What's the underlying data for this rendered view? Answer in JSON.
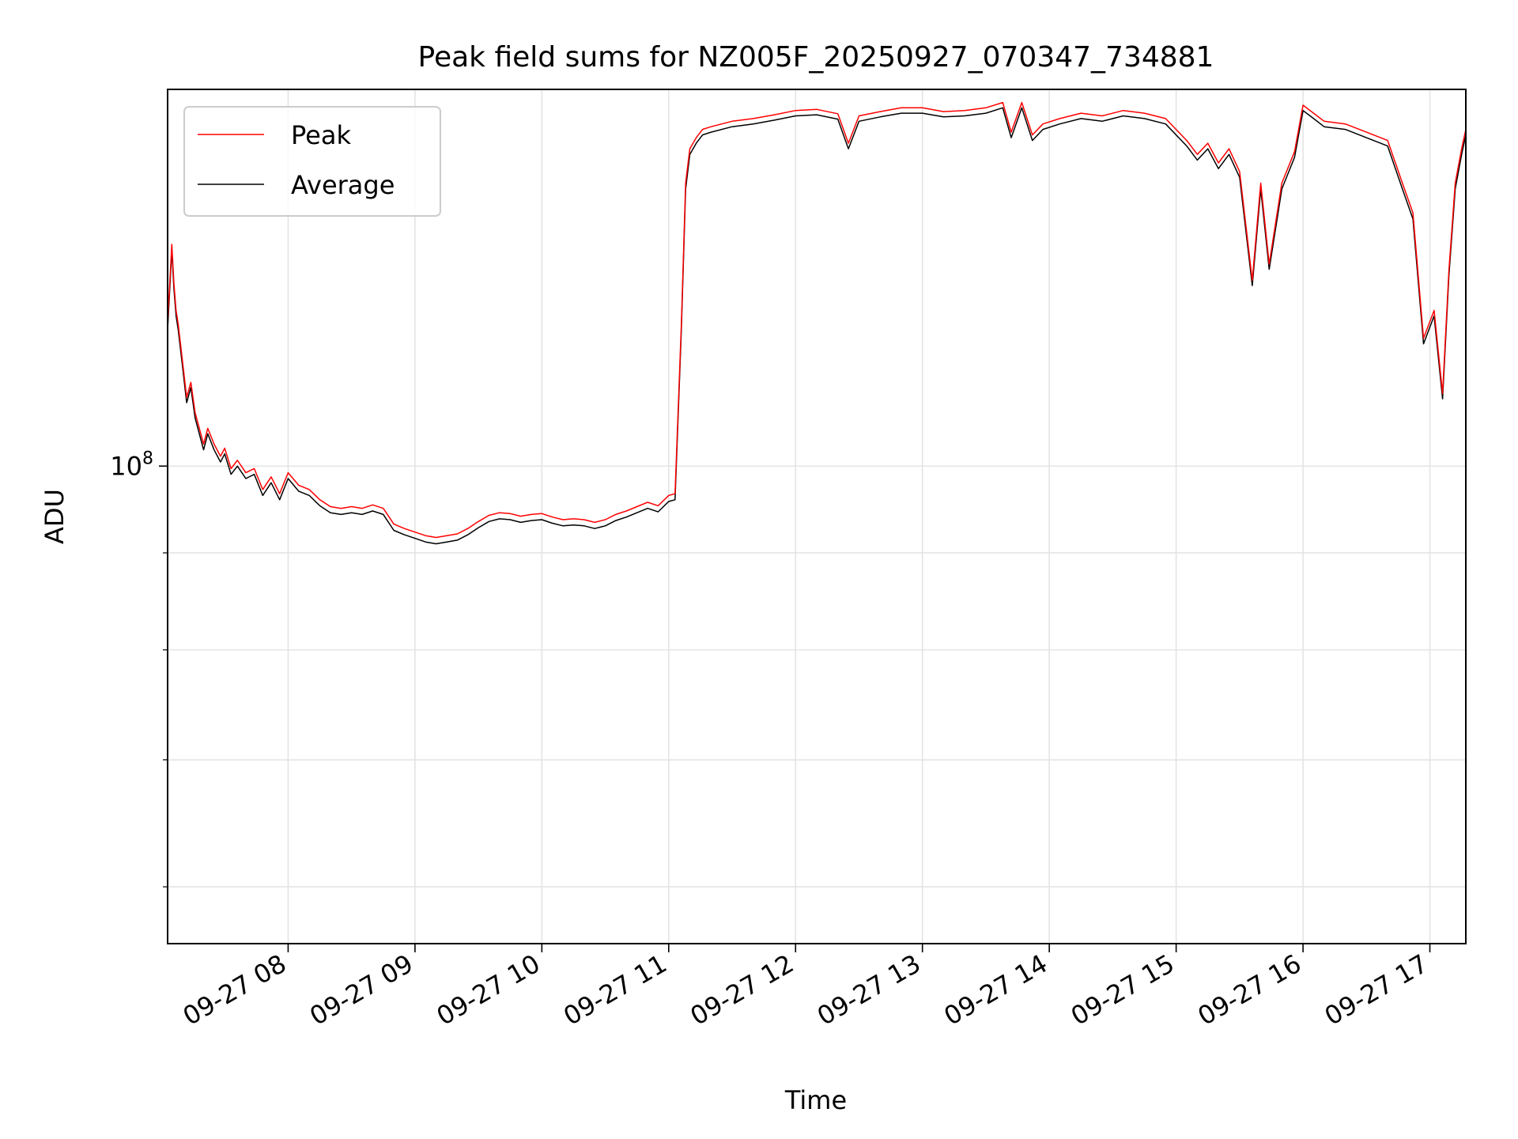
{
  "chart_data": {
    "type": "line",
    "title": "Peak field sums for NZ005F_20250927_070347_734881",
    "xlabel": "Time",
    "ylabel": "ADU",
    "y_scale": "log",
    "y_tick_label": {
      "base": "10",
      "exponent": "8",
      "value": 100000000
    },
    "y_minor_ticks": [
      60000000,
      70000000,
      80000000,
      90000000
    ],
    "ylim": [
      56000000,
      158000000
    ],
    "xlim": [
      "2025-09-27 07:03",
      "2025-09-27 17:17"
    ],
    "x_ticks": [
      {
        "label": "09-27 08",
        "time": "2025-09-27 08:00"
      },
      {
        "label": "09-27 09",
        "time": "2025-09-27 09:00"
      },
      {
        "label": "09-27 10",
        "time": "2025-09-27 10:00"
      },
      {
        "label": "09-27 11",
        "time": "2025-09-27 11:00"
      },
      {
        "label": "09-27 12",
        "time": "2025-09-27 12:00"
      },
      {
        "label": "09-27 13",
        "time": "2025-09-27 13:00"
      },
      {
        "label": "09-27 14",
        "time": "2025-09-27 14:00"
      },
      {
        "label": "09-27 15",
        "time": "2025-09-27 15:00"
      },
      {
        "label": "09-27 16",
        "time": "2025-09-27 16:00"
      },
      {
        "label": "09-27 17",
        "time": "2025-09-27 17:00"
      }
    ],
    "grid": true,
    "legend_position": "top-left",
    "series": [
      {
        "name": "Average",
        "color": "#000000",
        "points": [
          [
            "2025-09-27 07:03",
            118000000
          ],
          [
            "2025-09-27 07:05",
            130000000
          ],
          [
            "2025-09-27 07:06",
            124000000
          ],
          [
            "2025-09-27 07:07",
            120000000
          ],
          [
            "2025-09-27 07:08",
            118000000
          ],
          [
            "2025-09-27 07:10",
            113000000
          ],
          [
            "2025-09-27 07:12",
            108000000
          ],
          [
            "2025-09-27 07:14",
            110000000
          ],
          [
            "2025-09-27 07:16",
            106000000
          ],
          [
            "2025-09-27 07:18",
            104000000
          ],
          [
            "2025-09-27 07:20",
            102000000
          ],
          [
            "2025-09-27 07:22",
            104000000
          ],
          [
            "2025-09-27 07:25",
            102000000
          ],
          [
            "2025-09-27 07:28",
            100500000
          ],
          [
            "2025-09-27 07:30",
            101500000
          ],
          [
            "2025-09-27 07:33",
            99000000
          ],
          [
            "2025-09-27 07:36",
            100000000
          ],
          [
            "2025-09-27 07:40",
            98500000
          ],
          [
            "2025-09-27 07:44",
            99000000
          ],
          [
            "2025-09-27 07:48",
            96500000
          ],
          [
            "2025-09-27 07:52",
            98000000
          ],
          [
            "2025-09-27 07:56",
            96000000
          ],
          [
            "2025-09-27 08:00",
            98500000
          ],
          [
            "2025-09-27 08:05",
            97000000
          ],
          [
            "2025-09-27 08:10",
            96500000
          ],
          [
            "2025-09-27 08:15",
            95300000
          ],
          [
            "2025-09-27 08:20",
            94500000
          ],
          [
            "2025-09-27 08:25",
            94300000
          ],
          [
            "2025-09-27 08:30",
            94500000
          ],
          [
            "2025-09-27 08:35",
            94300000
          ],
          [
            "2025-09-27 08:40",
            94700000
          ],
          [
            "2025-09-27 08:45",
            94300000
          ],
          [
            "2025-09-27 08:50",
            92500000
          ],
          [
            "2025-09-27 08:55",
            92000000
          ],
          [
            "2025-09-27 09:00",
            91600000
          ],
          [
            "2025-09-27 09:05",
            91200000
          ],
          [
            "2025-09-27 09:10",
            91000000
          ],
          [
            "2025-09-27 09:15",
            91200000
          ],
          [
            "2025-09-27 09:20",
            91400000
          ],
          [
            "2025-09-27 09:25",
            92000000
          ],
          [
            "2025-09-27 09:30",
            92800000
          ],
          [
            "2025-09-27 09:35",
            93500000
          ],
          [
            "2025-09-27 09:40",
            93800000
          ],
          [
            "2025-09-27 09:45",
            93700000
          ],
          [
            "2025-09-27 09:50",
            93400000
          ],
          [
            "2025-09-27 09:55",
            93600000
          ],
          [
            "2025-09-27 10:00",
            93700000
          ],
          [
            "2025-09-27 10:05",
            93300000
          ],
          [
            "2025-09-27 10:10",
            93000000
          ],
          [
            "2025-09-27 10:15",
            93100000
          ],
          [
            "2025-09-27 10:20",
            93000000
          ],
          [
            "2025-09-27 10:25",
            92700000
          ],
          [
            "2025-09-27 10:30",
            93000000
          ],
          [
            "2025-09-27 10:35",
            93600000
          ],
          [
            "2025-09-27 10:40",
            94000000
          ],
          [
            "2025-09-27 10:45",
            94500000
          ],
          [
            "2025-09-27 10:50",
            95000000
          ],
          [
            "2025-09-27 10:55",
            94600000
          ],
          [
            "2025-09-27 11:00",
            95800000
          ],
          [
            "2025-09-27 11:03",
            96000000
          ],
          [
            "2025-09-27 11:06",
            118000000
          ],
          [
            "2025-09-27 11:08",
            140000000
          ],
          [
            "2025-09-27 11:10",
            146000000
          ],
          [
            "2025-09-27 11:13",
            148000000
          ],
          [
            "2025-09-27 11:16",
            149500000
          ],
          [
            "2025-09-27 11:20",
            150000000
          ],
          [
            "2025-09-27 11:30",
            151000000
          ],
          [
            "2025-09-27 11:40",
            151500000
          ],
          [
            "2025-09-27 11:50",
            152200000
          ],
          [
            "2025-09-27 12:00",
            153000000
          ],
          [
            "2025-09-27 12:10",
            153200000
          ],
          [
            "2025-09-27 12:20",
            152400000
          ],
          [
            "2025-09-27 12:25",
            147000000
          ],
          [
            "2025-09-27 12:30",
            152000000
          ],
          [
            "2025-09-27 12:40",
            152800000
          ],
          [
            "2025-09-27 12:50",
            153500000
          ],
          [
            "2025-09-27 13:00",
            153500000
          ],
          [
            "2025-09-27 13:10",
            152800000
          ],
          [
            "2025-09-27 13:20",
            153000000
          ],
          [
            "2025-09-27 13:30",
            153500000
          ],
          [
            "2025-09-27 13:38",
            154500000
          ],
          [
            "2025-09-27 13:42",
            149000000
          ],
          [
            "2025-09-27 13:47",
            154500000
          ],
          [
            "2025-09-27 13:52",
            148500000
          ],
          [
            "2025-09-27 13:57",
            150500000
          ],
          [
            "2025-09-27 14:05",
            151500000
          ],
          [
            "2025-09-27 14:15",
            152500000
          ],
          [
            "2025-09-27 14:25",
            152000000
          ],
          [
            "2025-09-27 14:35",
            153000000
          ],
          [
            "2025-09-27 14:45",
            152500000
          ],
          [
            "2025-09-27 14:55",
            151500000
          ],
          [
            "2025-09-27 15:05",
            147500000
          ],
          [
            "2025-09-27 15:10",
            145000000
          ],
          [
            "2025-09-27 15:15",
            147000000
          ],
          [
            "2025-09-27 15:20",
            143500000
          ],
          [
            "2025-09-27 15:25",
            146000000
          ],
          [
            "2025-09-27 15:30",
            142000000
          ],
          [
            "2025-09-27 15:36",
            124500000
          ],
          [
            "2025-09-27 15:40",
            140000000
          ],
          [
            "2025-09-27 15:44",
            127000000
          ],
          [
            "2025-09-27 15:50",
            140000000
          ],
          [
            "2025-09-27 15:56",
            145500000
          ],
          [
            "2025-09-27 16:00",
            154000000
          ],
          [
            "2025-09-27 16:05",
            152500000
          ],
          [
            "2025-09-27 16:10",
            151000000
          ],
          [
            "2025-09-27 16:20",
            150500000
          ],
          [
            "2025-09-27 16:30",
            149000000
          ],
          [
            "2025-09-27 16:40",
            147500000
          ],
          [
            "2025-09-27 16:47",
            140000000
          ],
          [
            "2025-09-27 16:52",
            135000000
          ],
          [
            "2025-09-27 16:57",
            116000000
          ],
          [
            "2025-09-27 17:02",
            120000000
          ],
          [
            "2025-09-27 17:06",
            108500000
          ],
          [
            "2025-09-27 17:09",
            126000000
          ],
          [
            "2025-09-27 17:12",
            140000000
          ],
          [
            "2025-09-27 17:15",
            146000000
          ],
          [
            "2025-09-27 17:17",
            149500000
          ]
        ]
      },
      {
        "name": "Peak",
        "color": "#ff0000",
        "points": [
          [
            "2025-09-27 07:03",
            118800000
          ],
          [
            "2025-09-27 07:05",
            130900000
          ],
          [
            "2025-09-27 07:06",
            124800000
          ],
          [
            "2025-09-27 07:07",
            120800000
          ],
          [
            "2025-09-27 07:08",
            118800000
          ],
          [
            "2025-09-27 07:10",
            113700000
          ],
          [
            "2025-09-27 07:12",
            108700000
          ],
          [
            "2025-09-27 07:14",
            110700000
          ],
          [
            "2025-09-27 07:16",
            106700000
          ],
          [
            "2025-09-27 07:18",
            104700000
          ],
          [
            "2025-09-27 07:20",
            102700000
          ],
          [
            "2025-09-27 07:22",
            104700000
          ],
          [
            "2025-09-27 07:25",
            102700000
          ],
          [
            "2025-09-27 07:28",
            101200000
          ],
          [
            "2025-09-27 07:30",
            102200000
          ],
          [
            "2025-09-27 07:33",
            99700000
          ],
          [
            "2025-09-27 07:36",
            100700000
          ],
          [
            "2025-09-27 07:40",
            99200000
          ],
          [
            "2025-09-27 07:44",
            99700000
          ],
          [
            "2025-09-27 07:48",
            97200000
          ],
          [
            "2025-09-27 07:52",
            98700000
          ],
          [
            "2025-09-27 07:56",
            96700000
          ],
          [
            "2025-09-27 08:00",
            99200000
          ],
          [
            "2025-09-27 08:05",
            97700000
          ],
          [
            "2025-09-27 08:10",
            97200000
          ],
          [
            "2025-09-27 08:15",
            96000000
          ],
          [
            "2025-09-27 08:20",
            95200000
          ],
          [
            "2025-09-27 08:25",
            95000000
          ],
          [
            "2025-09-27 08:30",
            95200000
          ],
          [
            "2025-09-27 08:35",
            95000000
          ],
          [
            "2025-09-27 08:40",
            95400000
          ],
          [
            "2025-09-27 08:45",
            95000000
          ],
          [
            "2025-09-27 08:50",
            93200000
          ],
          [
            "2025-09-27 08:55",
            92700000
          ],
          [
            "2025-09-27 09:00",
            92300000
          ],
          [
            "2025-09-27 09:05",
            91900000
          ],
          [
            "2025-09-27 09:10",
            91700000
          ],
          [
            "2025-09-27 09:15",
            91900000
          ],
          [
            "2025-09-27 09:20",
            92100000
          ],
          [
            "2025-09-27 09:25",
            92700000
          ],
          [
            "2025-09-27 09:30",
            93500000
          ],
          [
            "2025-09-27 09:35",
            94200000
          ],
          [
            "2025-09-27 09:40",
            94500000
          ],
          [
            "2025-09-27 09:45",
            94400000
          ],
          [
            "2025-09-27 09:50",
            94100000
          ],
          [
            "2025-09-27 09:55",
            94300000
          ],
          [
            "2025-09-27 10:00",
            94400000
          ],
          [
            "2025-09-27 10:05",
            94000000
          ],
          [
            "2025-09-27 10:10",
            93700000
          ],
          [
            "2025-09-27 10:15",
            93800000
          ],
          [
            "2025-09-27 10:20",
            93700000
          ],
          [
            "2025-09-27 10:25",
            93400000
          ],
          [
            "2025-09-27 10:30",
            93700000
          ],
          [
            "2025-09-27 10:35",
            94300000
          ],
          [
            "2025-09-27 10:40",
            94700000
          ],
          [
            "2025-09-27 10:45",
            95200000
          ],
          [
            "2025-09-27 10:50",
            95700000
          ],
          [
            "2025-09-27 10:55",
            95300000
          ],
          [
            "2025-09-27 11:00",
            96500000
          ],
          [
            "2025-09-27 11:03",
            96700000
          ],
          [
            "2025-09-27 11:06",
            118800000
          ],
          [
            "2025-09-27 11:08",
            141000000
          ],
          [
            "2025-09-27 11:10",
            147000000
          ],
          [
            "2025-09-27 11:13",
            149000000
          ],
          [
            "2025-09-27 11:16",
            150500000
          ],
          [
            "2025-09-27 11:20",
            151000000
          ],
          [
            "2025-09-27 11:30",
            152000000
          ],
          [
            "2025-09-27 11:40",
            152500000
          ],
          [
            "2025-09-27 11:50",
            153200000
          ],
          [
            "2025-09-27 12:00",
            154000000
          ],
          [
            "2025-09-27 12:10",
            154200000
          ],
          [
            "2025-09-27 12:20",
            153400000
          ],
          [
            "2025-09-27 12:25",
            148000000
          ],
          [
            "2025-09-27 12:30",
            153000000
          ],
          [
            "2025-09-27 12:40",
            153800000
          ],
          [
            "2025-09-27 12:50",
            154500000
          ],
          [
            "2025-09-27 13:00",
            154500000
          ],
          [
            "2025-09-27 13:10",
            153800000
          ],
          [
            "2025-09-27 13:20",
            154000000
          ],
          [
            "2025-09-27 13:30",
            154500000
          ],
          [
            "2025-09-27 13:38",
            155500000
          ],
          [
            "2025-09-27 13:42",
            150000000
          ],
          [
            "2025-09-27 13:47",
            155500000
          ],
          [
            "2025-09-27 13:52",
            149500000
          ],
          [
            "2025-09-27 13:57",
            151500000
          ],
          [
            "2025-09-27 14:05",
            152500000
          ],
          [
            "2025-09-27 14:15",
            153500000
          ],
          [
            "2025-09-27 14:25",
            153000000
          ],
          [
            "2025-09-27 14:35",
            154000000
          ],
          [
            "2025-09-27 14:45",
            153500000
          ],
          [
            "2025-09-27 14:55",
            152500000
          ],
          [
            "2025-09-27 15:05",
            148500000
          ],
          [
            "2025-09-27 15:10",
            146000000
          ],
          [
            "2025-09-27 15:15",
            148000000
          ],
          [
            "2025-09-27 15:20",
            144500000
          ],
          [
            "2025-09-27 15:25",
            147000000
          ],
          [
            "2025-09-27 15:30",
            143000000
          ],
          [
            "2025-09-27 15:36",
            125300000
          ],
          [
            "2025-09-27 15:40",
            141000000
          ],
          [
            "2025-09-27 15:44",
            127800000
          ],
          [
            "2025-09-27 15:50",
            141000000
          ],
          [
            "2025-09-27 15:56",
            146500000
          ],
          [
            "2025-09-27 16:00",
            155000000
          ],
          [
            "2025-09-27 16:05",
            153500000
          ],
          [
            "2025-09-27 16:10",
            152000000
          ],
          [
            "2025-09-27 16:20",
            151500000
          ],
          [
            "2025-09-27 16:30",
            150000000
          ],
          [
            "2025-09-27 16:40",
            148500000
          ],
          [
            "2025-09-27 16:47",
            141000000
          ],
          [
            "2025-09-27 16:52",
            136000000
          ],
          [
            "2025-09-27 16:57",
            116800000
          ],
          [
            "2025-09-27 17:02",
            120800000
          ],
          [
            "2025-09-27 17:06",
            109200000
          ],
          [
            "2025-09-27 17:09",
            126800000
          ],
          [
            "2025-09-27 17:12",
            141000000
          ],
          [
            "2025-09-27 17:15",
            147000000
          ],
          [
            "2025-09-27 17:17",
            150500000
          ]
        ]
      }
    ]
  }
}
